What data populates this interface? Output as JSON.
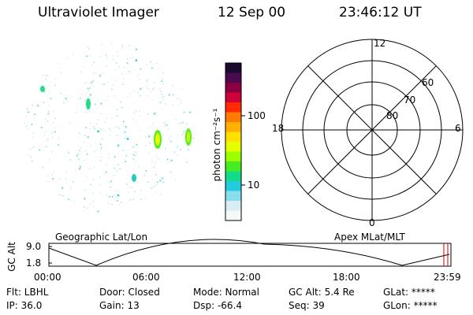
{
  "header": {
    "title": "Ultraviolet Imager",
    "date": "12 Sep 00",
    "time": "23:46:12 UT"
  },
  "colorbar": {
    "unit_label": "photon cm⁻²s⁻¹",
    "ticks": [
      "100",
      "10"
    ],
    "colors": [
      "#1a0a2e",
      "#4a0a4e",
      "#8a0040",
      "#d0003a",
      "#ff2a00",
      "#ff7a00",
      "#ffb000",
      "#ffe000",
      "#e6ff00",
      "#9bff00",
      "#44ee22",
      "#11dd88",
      "#22ccdd",
      "#88ddee",
      "#d8eef2",
      "#f4f8f8"
    ]
  },
  "polar_grid": {
    "mlt_labels": {
      "top": "12",
      "left": "18",
      "right": "6",
      "bottom": "0"
    },
    "lat_labels": [
      "60",
      "70",
      "80"
    ]
  },
  "orbit_panel": {
    "left_title": "Geographic Lat/Lon",
    "right_title": "Apex MLat/MLT",
    "ylabel": "GC Alt",
    "yticks": [
      "9.0",
      "1.8"
    ],
    "xticks": [
      "00:00",
      "06:00",
      "12:00",
      "18:00",
      "23:59"
    ]
  },
  "info": {
    "flt": "Flt: LBHL",
    "ip": "IP: 36.0",
    "door": "Door: Closed",
    "gain": "Gain: 13",
    "mode": "Mode: Normal",
    "dsp": "Dsp:   -66.4",
    "gcalt": "GC Alt: 5.4 Re",
    "seq": "Seq: 39",
    "glat": "GLat: *****",
    "glon": "GLon: *****"
  }
}
